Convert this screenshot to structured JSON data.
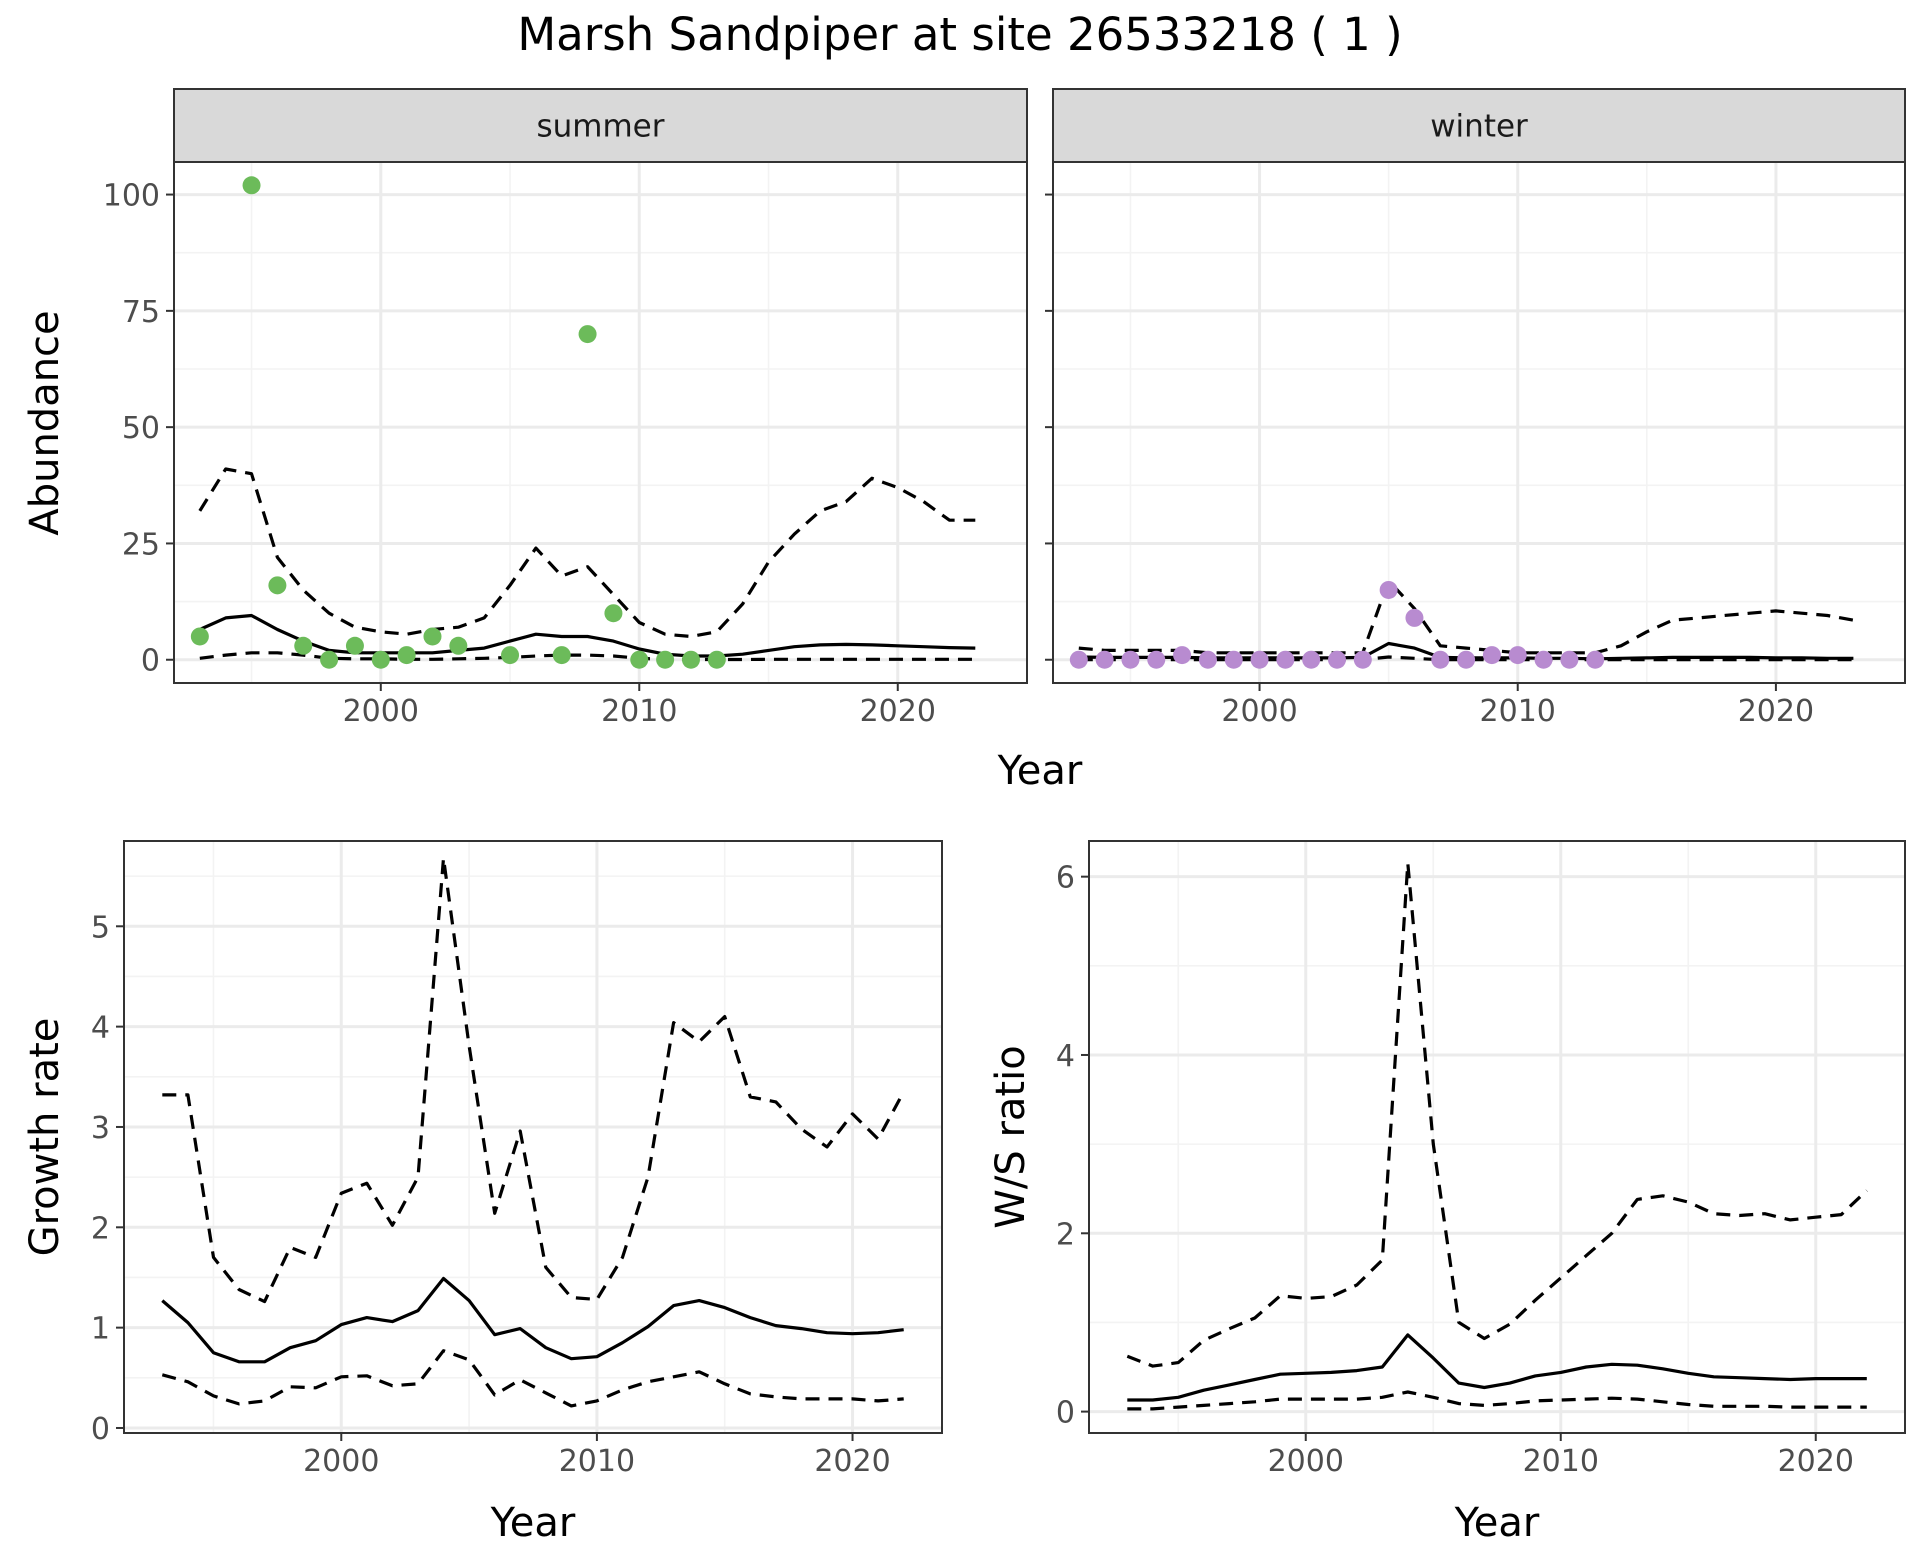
{
  "title": "Marsh Sandpiper at site 26533218 ( 1 )",
  "colors": {
    "summer_points": "#6cbb5a",
    "winter_points": "#b88bd0"
  },
  "chart_data": [
    {
      "id": "summer",
      "type": "line",
      "strip": "summer",
      "xlabel": "",
      "ylabel": "Abundance",
      "xlim": [
        1992,
        2025
      ],
      "ylim": [
        -5,
        107
      ],
      "xticks": [
        2000,
        2010,
        2020
      ],
      "yticks": [
        0,
        25,
        50,
        75,
        100
      ],
      "grid": true,
      "x": [
        1993,
        1994,
        1995,
        1996,
        1997,
        1998,
        1999,
        2000,
        2001,
        2002,
        2003,
        2004,
        2005,
        2006,
        2007,
        2008,
        2009,
        2010,
        2011,
        2012,
        2013,
        2014,
        2015,
        2016,
        2017,
        2018,
        2019,
        2020,
        2021,
        2022,
        2023
      ],
      "mean": [
        6.5,
        9,
        9.5,
        6.5,
        4,
        2,
        1.5,
        1.5,
        1.5,
        1.5,
        2,
        2.5,
        4,
        5.5,
        5,
        5,
        4,
        2.3,
        1.2,
        0.8,
        0.8,
        1.2,
        2,
        2.8,
        3.2,
        3.3,
        3.2,
        3,
        2.8,
        2.6,
        2.5
      ],
      "upper": [
        32,
        41,
        40,
        22,
        15,
        10,
        7,
        6,
        5.5,
        6.5,
        7,
        9,
        16,
        24,
        18,
        20,
        14,
        8,
        5.5,
        5,
        6,
        12,
        21,
        27,
        32,
        34,
        39,
        37,
        34,
        30,
        30
      ],
      "lower": [
        0.3,
        1,
        1.5,
        1.5,
        1,
        0.3,
        0.2,
        0.2,
        0.1,
        0.1,
        0.2,
        0.3,
        0.5,
        0.8,
        1,
        1,
        0.8,
        0.3,
        0.1,
        0.05,
        0.05,
        0.05,
        0.1,
        0.1,
        0.1,
        0.1,
        0.1,
        0.1,
        0.1,
        0.1,
        0.1
      ],
      "observed": {
        "x": [
          1993,
          1995,
          1996,
          1997,
          1998,
          1999,
          2000,
          2001,
          2002,
          2003,
          2005,
          2007,
          2008,
          2009,
          2010,
          2011,
          2012,
          2013
        ],
        "y": [
          5,
          102,
          16,
          3,
          0,
          3,
          0,
          1,
          5,
          3,
          1,
          1,
          70,
          10,
          0,
          0,
          0,
          0
        ]
      }
    },
    {
      "id": "winter",
      "type": "line",
      "strip": "winter",
      "xlabel": "",
      "ylabel": "",
      "xlim": [
        1992,
        2025
      ],
      "ylim": [
        -5,
        107
      ],
      "xticks": [
        2000,
        2010,
        2020
      ],
      "yticks": [
        0,
        25,
        50,
        75,
        100
      ],
      "grid": true,
      "x": [
        1993,
        1994,
        1995,
        1996,
        1997,
        1998,
        1999,
        2000,
        2001,
        2002,
        2003,
        2004,
        2005,
        2006,
        2007,
        2008,
        2009,
        2010,
        2011,
        2012,
        2013,
        2014,
        2015,
        2016,
        2017,
        2018,
        2019,
        2020,
        2021,
        2022,
        2023
      ],
      "mean": [
        0.6,
        0.5,
        0.5,
        0.5,
        0.5,
        0.4,
        0.4,
        0.4,
        0.4,
        0.4,
        0.4,
        0.5,
        3.5,
        2.5,
        0.5,
        0.4,
        0.4,
        0.4,
        0.3,
        0.3,
        0.2,
        0.3,
        0.4,
        0.5,
        0.5,
        0.5,
        0.5,
        0.4,
        0.4,
        0.3,
        0.3
      ],
      "upper": [
        2.5,
        2,
        2,
        2,
        2,
        1.5,
        1.5,
        1.5,
        1.5,
        1.5,
        1.5,
        1.5,
        17,
        11,
        3,
        2.5,
        2,
        1.5,
        1.5,
        1.5,
        1.5,
        3,
        6,
        8.5,
        9,
        9.5,
        10,
        10.5,
        10,
        9.5,
        8.5
      ],
      "lower": [
        0,
        0,
        0,
        0,
        0,
        0,
        0,
        0,
        0,
        0,
        0,
        0,
        0.6,
        0.3,
        0,
        0,
        0,
        0,
        0,
        0,
        0,
        0,
        0,
        0,
        0,
        0,
        0,
        0,
        0,
        0,
        0
      ],
      "observed": {
        "x": [
          1993,
          1994,
          1995,
          1996,
          1997,
          1998,
          1999,
          2000,
          2001,
          2002,
          2003,
          2004,
          2005,
          2006,
          2007,
          2008,
          2009,
          2010,
          2011,
          2012,
          2013
        ],
        "y": [
          0,
          0,
          0,
          0,
          1,
          0,
          0,
          0,
          0,
          0,
          0,
          0,
          15,
          9,
          0,
          0,
          1,
          1,
          0,
          0,
          0
        ]
      }
    },
    {
      "id": "growth",
      "type": "line",
      "xlabel": "Year",
      "ylabel": "Growth rate",
      "xlim": [
        1991.5,
        2023.5
      ],
      "ylim": [
        -0.05,
        5.85
      ],
      "xticks": [
        2000,
        2010,
        2020
      ],
      "yticks": [
        0,
        1,
        2,
        3,
        4,
        5
      ],
      "grid": true,
      "x": [
        1993,
        1994,
        1995,
        1996,
        1997,
        1998,
        1999,
        2000,
        2001,
        2002,
        2003,
        2004,
        2005,
        2006,
        2007,
        2008,
        2009,
        2010,
        2011,
        2012,
        2013,
        2014,
        2015,
        2016,
        2017,
        2018,
        2019,
        2020,
        2021,
        2022
      ],
      "mean": [
        1.27,
        1.05,
        0.75,
        0.66,
        0.66,
        0.8,
        0.87,
        1.03,
        1.1,
        1.06,
        1.17,
        1.49,
        1.27,
        0.93,
        0.99,
        0.8,
        0.69,
        0.71,
        0.85,
        1.01,
        1.22,
        1.27,
        1.2,
        1.1,
        1.02,
        0.99,
        0.95,
        0.94,
        0.95,
        0.98
      ],
      "upper": [
        3.32,
        3.32,
        1.7,
        1.38,
        1.26,
        1.8,
        1.7,
        2.34,
        2.44,
        2.02,
        2.5,
        5.68,
        3.81,
        2.14,
        2.96,
        1.6,
        1.3,
        1.28,
        1.7,
        2.5,
        4.04,
        3.85,
        4.1,
        3.3,
        3.25,
        2.98,
        2.8,
        3.13,
        2.88,
        3.35
      ],
      "lower": [
        0.53,
        0.46,
        0.32,
        0.24,
        0.27,
        0.41,
        0.4,
        0.51,
        0.52,
        0.42,
        0.44,
        0.77,
        0.68,
        0.33,
        0.48,
        0.35,
        0.22,
        0.27,
        0.38,
        0.46,
        0.51,
        0.56,
        0.44,
        0.34,
        0.31,
        0.29,
        0.29,
        0.29,
        0.27,
        0.29
      ]
    },
    {
      "id": "ratio",
      "type": "line",
      "xlabel": "Year",
      "ylabel": "W/S ratio",
      "xlim": [
        1991.5,
        2023.5
      ],
      "ylim": [
        -0.24,
        6.4
      ],
      "xticks": [
        2000,
        2010,
        2020
      ],
      "yticks": [
        0,
        2,
        4,
        6
      ],
      "grid": true,
      "x": [
        1993,
        1994,
        1995,
        1996,
        1997,
        1998,
        1999,
        2000,
        2001,
        2002,
        2003,
        2004,
        2005,
        2006,
        2007,
        2008,
        2009,
        2010,
        2011,
        2012,
        2013,
        2014,
        2015,
        2016,
        2017,
        2018,
        2019,
        2020,
        2021,
        2022
      ],
      "mean": [
        0.13,
        0.13,
        0.16,
        0.24,
        0.3,
        0.36,
        0.42,
        0.43,
        0.44,
        0.46,
        0.5,
        0.86,
        0.6,
        0.32,
        0.27,
        0.32,
        0.4,
        0.44,
        0.5,
        0.53,
        0.52,
        0.48,
        0.43,
        0.39,
        0.38,
        0.37,
        0.36,
        0.37,
        0.37,
        0.37
      ],
      "upper": [
        0.62,
        0.51,
        0.55,
        0.8,
        0.93,
        1.05,
        1.3,
        1.27,
        1.29,
        1.42,
        1.7,
        6.15,
        3.0,
        1.0,
        0.82,
        0.98,
        1.25,
        1.5,
        1.75,
        2.0,
        2.38,
        2.42,
        2.35,
        2.22,
        2.2,
        2.22,
        2.15,
        2.18,
        2.21,
        2.48
      ],
      "lower": [
        0.03,
        0.03,
        0.05,
        0.07,
        0.09,
        0.11,
        0.14,
        0.14,
        0.14,
        0.14,
        0.16,
        0.22,
        0.16,
        0.09,
        0.07,
        0.09,
        0.12,
        0.13,
        0.14,
        0.15,
        0.14,
        0.11,
        0.08,
        0.06,
        0.06,
        0.06,
        0.05,
        0.05,
        0.05,
        0.05
      ]
    }
  ],
  "shared_xlabel_top": "Year"
}
